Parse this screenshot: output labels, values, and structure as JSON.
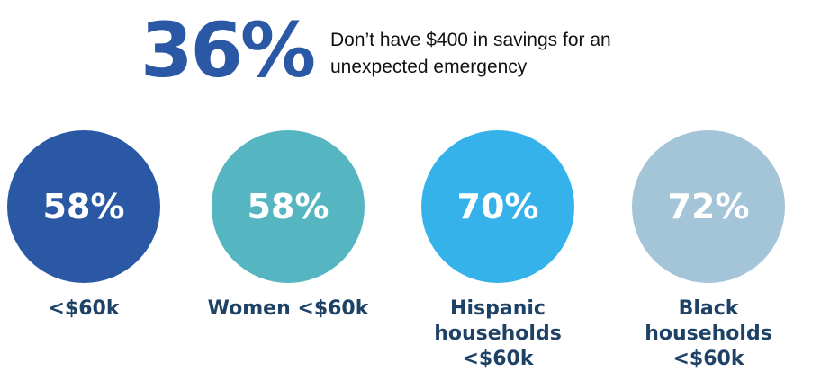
{
  "headline": {
    "value": "36%",
    "text": "Don’t have $400 in savings for an unexpected emergency",
    "color": "#2a58a5"
  },
  "stats": [
    {
      "value": "58%",
      "label_lines": [
        "<$60k"
      ],
      "color": "#2a58a5"
    },
    {
      "value": "58%",
      "label_lines": [
        "Women <$60k"
      ],
      "color": "#55b5c1"
    },
    {
      "value": "70%",
      "label_lines": [
        "Hispanic",
        "households",
        "<$60k"
      ],
      "color": "#36b2ea"
    },
    {
      "value": "72%",
      "label_lines": [
        "Black",
        "households",
        "<$60k"
      ],
      "color": "#a4c4d8"
    }
  ]
}
